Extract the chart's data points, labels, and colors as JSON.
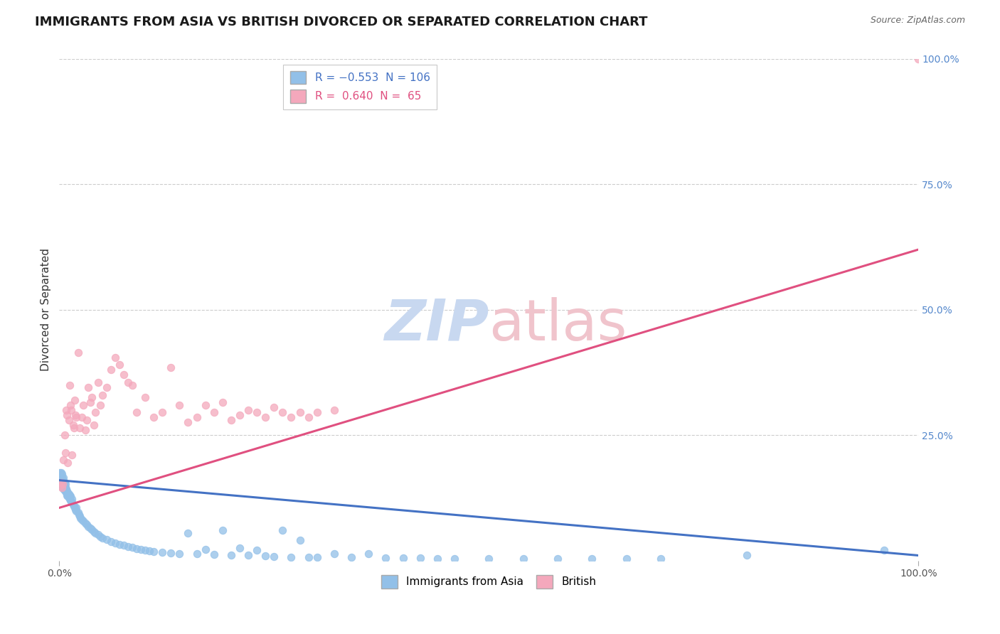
{
  "title": "IMMIGRANTS FROM ASIA VS BRITISH DIVORCED OR SEPARATED CORRELATION CHART",
  "source_text": "Source: ZipAtlas.com",
  "ylabel": "Divorced or Separated",
  "watermark_zip": "ZIP",
  "watermark_atlas": "atlas",
  "xlim": [
    0,
    1.0
  ],
  "ylim": [
    0,
    1.0
  ],
  "xtick_labels": [
    "0.0%",
    "100.0%"
  ],
  "ytick_labels_right": [
    "25.0%",
    "50.0%",
    "75.0%",
    "100.0%"
  ],
  "ytick_positions_right": [
    0.25,
    0.5,
    0.75,
    1.0
  ],
  "blue_scatter_x": [
    0.001,
    0.001,
    0.002,
    0.002,
    0.002,
    0.003,
    0.003,
    0.003,
    0.003,
    0.004,
    0.004,
    0.004,
    0.005,
    0.005,
    0.005,
    0.005,
    0.006,
    0.006,
    0.006,
    0.007,
    0.007,
    0.007,
    0.008,
    0.008,
    0.009,
    0.009,
    0.01,
    0.01,
    0.011,
    0.011,
    0.012,
    0.012,
    0.013,
    0.013,
    0.014,
    0.015,
    0.015,
    0.016,
    0.017,
    0.018,
    0.019,
    0.02,
    0.02,
    0.022,
    0.023,
    0.024,
    0.025,
    0.026,
    0.028,
    0.03,
    0.032,
    0.034,
    0.036,
    0.038,
    0.04,
    0.042,
    0.045,
    0.048,
    0.05,
    0.055,
    0.06,
    0.065,
    0.07,
    0.075,
    0.08,
    0.085,
    0.09,
    0.095,
    0.1,
    0.105,
    0.11,
    0.12,
    0.13,
    0.14,
    0.15,
    0.16,
    0.17,
    0.18,
    0.19,
    0.2,
    0.21,
    0.22,
    0.23,
    0.24,
    0.25,
    0.26,
    0.27,
    0.28,
    0.29,
    0.3,
    0.32,
    0.34,
    0.36,
    0.38,
    0.4,
    0.42,
    0.44,
    0.46,
    0.5,
    0.54,
    0.58,
    0.62,
    0.66,
    0.7,
    0.8,
    0.96
  ],
  "blue_scatter_y": [
    0.16,
    0.175,
    0.155,
    0.165,
    0.175,
    0.15,
    0.158,
    0.165,
    0.172,
    0.148,
    0.157,
    0.163,
    0.142,
    0.152,
    0.158,
    0.165,
    0.14,
    0.148,
    0.155,
    0.138,
    0.145,
    0.152,
    0.135,
    0.142,
    0.13,
    0.138,
    0.128,
    0.135,
    0.125,
    0.132,
    0.122,
    0.13,
    0.12,
    0.128,
    0.118,
    0.115,
    0.122,
    0.112,
    0.108,
    0.105,
    0.102,
    0.098,
    0.105,
    0.095,
    0.092,
    0.088,
    0.085,
    0.082,
    0.078,
    0.075,
    0.072,
    0.068,
    0.065,
    0.062,
    0.058,
    0.055,
    0.052,
    0.048,
    0.045,
    0.042,
    0.038,
    0.035,
    0.032,
    0.03,
    0.028,
    0.026,
    0.024,
    0.022,
    0.02,
    0.019,
    0.018,
    0.016,
    0.015,
    0.014,
    0.055,
    0.013,
    0.022,
    0.012,
    0.06,
    0.011,
    0.025,
    0.01,
    0.02,
    0.009,
    0.008,
    0.06,
    0.007,
    0.04,
    0.007,
    0.006,
    0.014,
    0.006,
    0.013,
    0.005,
    0.005,
    0.005,
    0.004,
    0.004,
    0.004,
    0.003,
    0.003,
    0.003,
    0.003,
    0.003,
    0.01,
    0.02
  ],
  "blue_trend_x": [
    0.0,
    1.0
  ],
  "blue_trend_y": [
    0.16,
    0.01
  ],
  "pink_scatter_x": [
    0.001,
    0.002,
    0.003,
    0.004,
    0.005,
    0.006,
    0.007,
    0.008,
    0.009,
    0.01,
    0.011,
    0.012,
    0.013,
    0.014,
    0.015,
    0.016,
    0.017,
    0.018,
    0.019,
    0.02,
    0.022,
    0.024,
    0.026,
    0.028,
    0.03,
    0.032,
    0.034,
    0.036,
    0.038,
    0.04,
    0.042,
    0.045,
    0.048,
    0.05,
    0.055,
    0.06,
    0.065,
    0.07,
    0.075,
    0.08,
    0.085,
    0.09,
    0.1,
    0.11,
    0.12,
    0.13,
    0.14,
    0.15,
    0.16,
    0.17,
    0.18,
    0.19,
    0.2,
    0.21,
    0.22,
    0.23,
    0.24,
    0.25,
    0.26,
    0.27,
    0.28,
    0.29,
    0.3,
    0.32,
    1.0
  ],
  "pink_scatter_y": [
    0.148,
    0.155,
    0.145,
    0.152,
    0.2,
    0.25,
    0.215,
    0.3,
    0.29,
    0.195,
    0.28,
    0.35,
    0.31,
    0.3,
    0.21,
    0.27,
    0.265,
    0.32,
    0.29,
    0.285,
    0.415,
    0.265,
    0.285,
    0.31,
    0.26,
    0.28,
    0.345,
    0.315,
    0.325,
    0.27,
    0.295,
    0.355,
    0.31,
    0.33,
    0.345,
    0.38,
    0.405,
    0.39,
    0.37,
    0.355,
    0.35,
    0.295,
    0.325,
    0.285,
    0.295,
    0.385,
    0.31,
    0.275,
    0.285,
    0.31,
    0.295,
    0.315,
    0.28,
    0.29,
    0.3,
    0.295,
    0.285,
    0.305,
    0.295,
    0.285,
    0.295,
    0.285,
    0.295,
    0.3,
    1.0
  ],
  "pink_trend_x": [
    0.0,
    1.0
  ],
  "pink_trend_y": [
    0.105,
    0.62
  ],
  "blue_color": "#92c0e8",
  "blue_edge_color": "#92c0e8",
  "blue_line_color": "#4472c4",
  "pink_color": "#f4a8bc",
  "pink_edge_color": "#f4a8bc",
  "pink_line_color": "#e05080",
  "grid_color": "#cccccc",
  "background_color": "#ffffff",
  "watermark_zip_color": "#c8d8f0",
  "watermark_atlas_color": "#f0c4cc",
  "title_fontsize": 13,
  "axis_label_fontsize": 11,
  "tick_fontsize": 10,
  "legend_fontsize": 11,
  "right_tick_color": "#5588cc"
}
